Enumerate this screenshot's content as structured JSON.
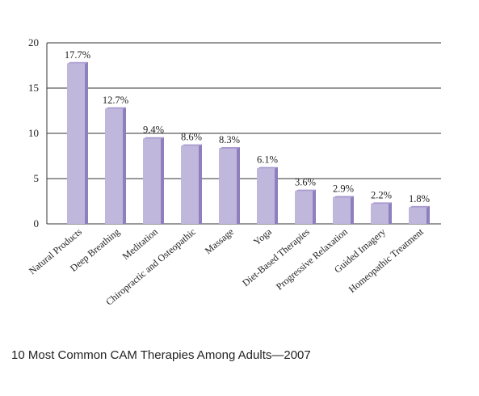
{
  "caption": "10 Most Common CAM Therapies Among Adults—2007",
  "colors": {
    "bar_front": "#c0b7dc",
    "bar_side": "#8f7fbe",
    "bar_top": "#a99bd0",
    "axis": "#333333",
    "grid": "#333333"
  },
  "chart_data": {
    "type": "bar",
    "title": "",
    "xlabel": "",
    "ylabel": "",
    "ylim": [
      0,
      20
    ],
    "yticks": [
      0,
      5,
      10,
      15,
      20
    ],
    "grid": true,
    "categories": [
      "Natural Products",
      "Deep Breathing",
      "Meditation",
      "Chiropractic and Osteopathic",
      "Massage",
      "Yoga",
      "Diet-Based Therapies",
      "Progressive Relaxation",
      "Guided Imagery",
      "Homeopathic Treatment"
    ],
    "values": [
      17.7,
      12.7,
      9.4,
      8.6,
      8.3,
      6.1,
      3.6,
      2.9,
      2.2,
      1.8
    ],
    "data_labels": [
      "17.7%",
      "12.7%",
      "9.4%",
      "8.6%",
      "8.3%",
      "6.1%",
      "3.6%",
      "2.9%",
      "2.2%",
      "1.8%"
    ]
  }
}
